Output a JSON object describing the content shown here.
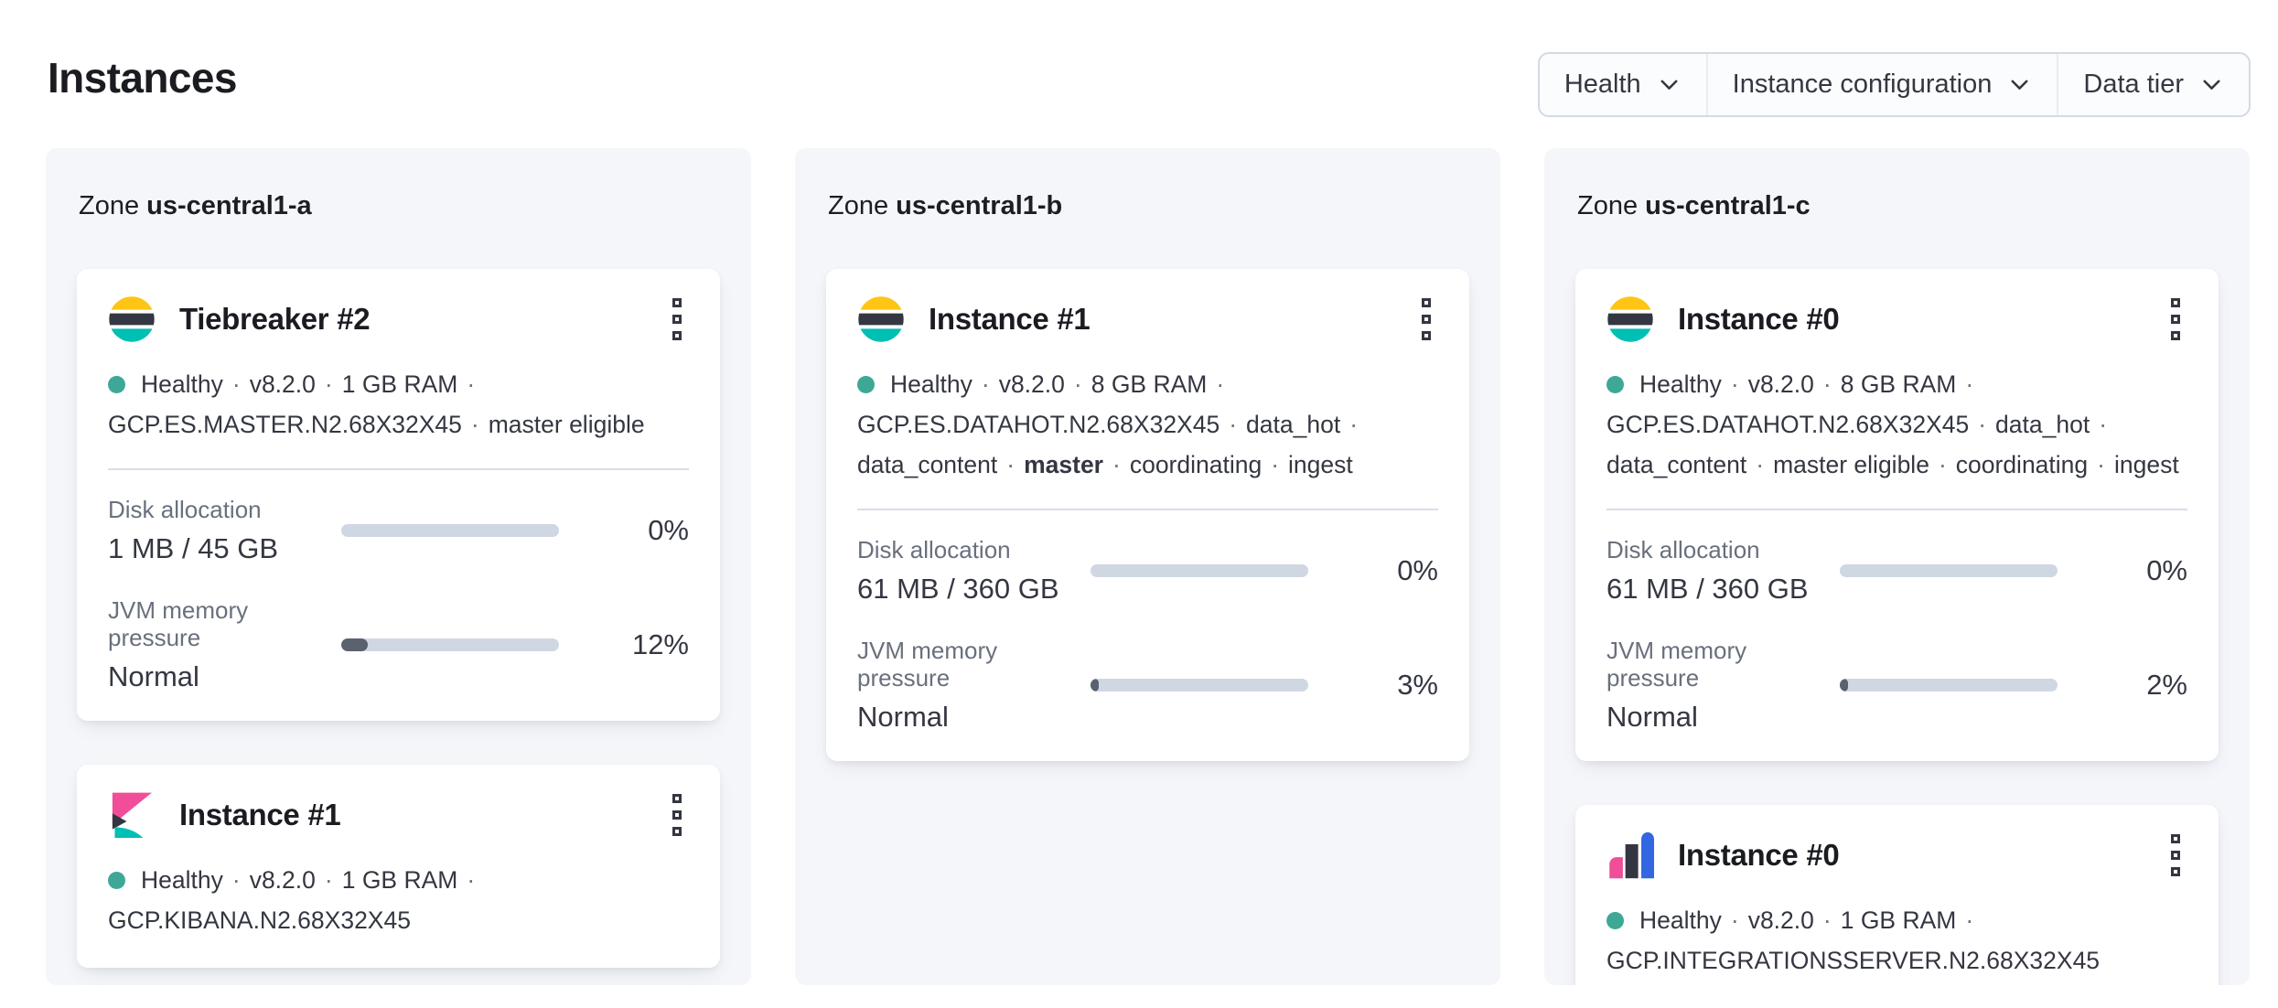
{
  "page": {
    "title": "Instances"
  },
  "filters": {
    "items": [
      {
        "label": "Health"
      },
      {
        "label": "Instance configuration"
      },
      {
        "label": "Data tier"
      }
    ]
  },
  "colors": {
    "healthy_dot": "#3ea896",
    "elastic_yellow": "#fec514",
    "elastic_pink": "#f04e98",
    "elastic_teal": "#00bfb3",
    "elastic_blue": "#3366e3",
    "ink": "#343741",
    "progress_track": "#cfd7e3",
    "progress_fill": "#5a6270"
  },
  "zones": [
    {
      "label_prefix": "Zone",
      "name": "us-central1-a",
      "cards": [
        {
          "logo": "elasticsearch",
          "title": "Tiebreaker #2",
          "health": "Healthy",
          "meta_lines": [
            {
              "has_dot": true,
              "trailing_sep": true,
              "parts": [
                {
                  "text": "Healthy"
                },
                {
                  "text": "v8.2.0"
                },
                {
                  "text": "1 GB RAM"
                }
              ]
            },
            {
              "parts": [
                {
                  "text": "GCP.ES.MASTER.N2.68X32X45"
                },
                {
                  "text": "master eligible"
                }
              ]
            }
          ],
          "metrics": [
            {
              "label": "Disk allocation",
              "value": "1 MB / 45 GB",
              "percent": 0,
              "percent_label": "0%"
            },
            {
              "label": "JVM memory pressure",
              "value": "Normal",
              "percent": 12,
              "percent_label": "12%"
            }
          ]
        },
        {
          "logo": "kibana",
          "title": "Instance #1",
          "health": "Healthy",
          "meta_lines": [
            {
              "has_dot": true,
              "trailing_sep": true,
              "parts": [
                {
                  "text": "Healthy"
                },
                {
                  "text": "v8.2.0"
                },
                {
                  "text": "1 GB RAM"
                }
              ]
            },
            {
              "parts": [
                {
                  "text": "GCP.KIBANA.N2.68X32X45"
                }
              ]
            }
          ],
          "metrics": []
        }
      ]
    },
    {
      "label_prefix": "Zone",
      "name": "us-central1-b",
      "cards": [
        {
          "logo": "elasticsearch",
          "title": "Instance #1",
          "health": "Healthy",
          "meta_lines": [
            {
              "has_dot": true,
              "trailing_sep": true,
              "parts": [
                {
                  "text": "Healthy"
                },
                {
                  "text": "v8.2.0"
                },
                {
                  "text": "8 GB RAM"
                }
              ]
            },
            {
              "trailing_sep": true,
              "parts": [
                {
                  "text": "GCP.ES.DATAHOT.N2.68X32X45"
                },
                {
                  "text": "data_hot"
                }
              ]
            },
            {
              "parts": [
                {
                  "text": "data_content"
                },
                {
                  "text": "master",
                  "bold": true
                },
                {
                  "text": "coordinating"
                },
                {
                  "text": "ingest"
                }
              ]
            }
          ],
          "metrics": [
            {
              "label": "Disk allocation",
              "value": "61 MB / 360 GB",
              "percent": 0,
              "percent_label": "0%"
            },
            {
              "label": "JVM memory pressure",
              "value": "Normal",
              "percent": 3,
              "percent_label": "3%"
            }
          ]
        }
      ]
    },
    {
      "label_prefix": "Zone",
      "name": "us-central1-c",
      "cards": [
        {
          "logo": "elasticsearch",
          "title": "Instance #0",
          "health": "Healthy",
          "meta_lines": [
            {
              "has_dot": true,
              "trailing_sep": true,
              "parts": [
                {
                  "text": "Healthy"
                },
                {
                  "text": "v8.2.0"
                },
                {
                  "text": "8 GB RAM"
                }
              ]
            },
            {
              "trailing_sep": true,
              "parts": [
                {
                  "text": "GCP.ES.DATAHOT.N2.68X32X45"
                },
                {
                  "text": "data_hot"
                }
              ]
            },
            {
              "parts": [
                {
                  "text": "data_content"
                },
                {
                  "text": "master eligible"
                },
                {
                  "text": "coordinating"
                },
                {
                  "text": "ingest"
                }
              ]
            }
          ],
          "metrics": [
            {
              "label": "Disk allocation",
              "value": "61 MB / 360 GB",
              "percent": 0,
              "percent_label": "0%"
            },
            {
              "label": "JVM memory pressure",
              "value": "Normal",
              "percent": 2,
              "percent_label": "2%"
            }
          ]
        },
        {
          "logo": "integrations_server",
          "title": "Instance #0",
          "health": "Healthy",
          "meta_lines": [
            {
              "has_dot": true,
              "trailing_sep": true,
              "parts": [
                {
                  "text": "Healthy"
                },
                {
                  "text": "v8.2.0"
                },
                {
                  "text": "1 GB RAM"
                }
              ]
            },
            {
              "parts": [
                {
                  "text": "GCP.INTEGRATIONSSERVER.N2.68X32X45"
                }
              ]
            }
          ],
          "metrics": []
        }
      ]
    }
  ]
}
